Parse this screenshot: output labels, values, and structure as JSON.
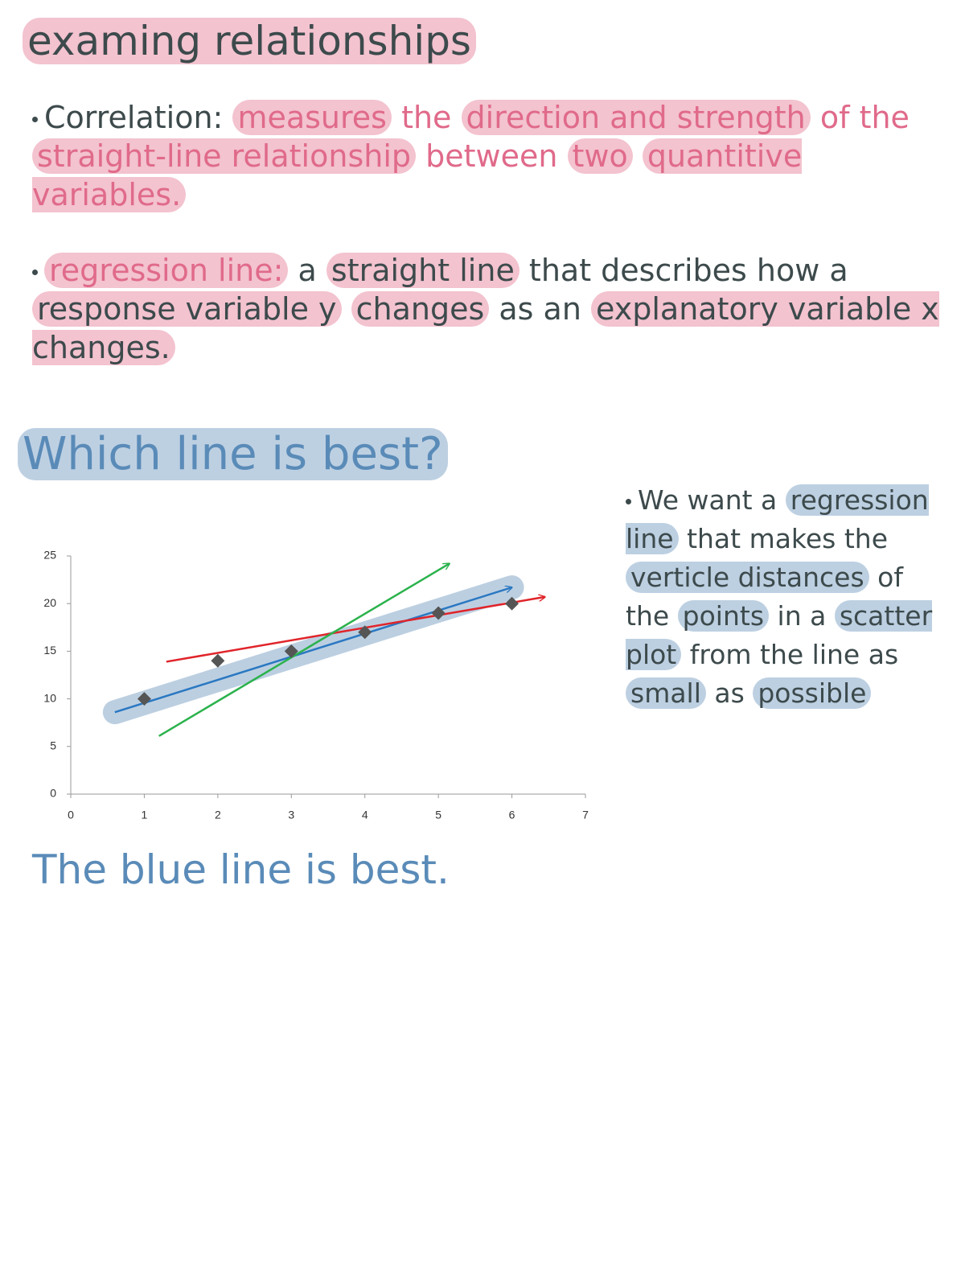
{
  "title": "examing relationships",
  "correlation": {
    "term": "Correlation:",
    "definition": [
      "measures",
      "the",
      "direction and strength",
      "of the",
      "straight-line relationship",
      "between",
      "two",
      "quantitive variables."
    ]
  },
  "regression": {
    "term": "regression line:",
    "definition": [
      "a",
      "straight line",
      "that describes how a",
      "response variable y",
      "changes",
      "as an",
      "explanatory variable x changes."
    ]
  },
  "heading": "Which line is best?",
  "note": [
    "We want a",
    "regression line",
    "that makes the",
    "verticle distances",
    "of the",
    "points",
    "in a",
    "scatter plot",
    "from the line as",
    "small",
    "as",
    "possible"
  ],
  "conclusion": "The blue line is best.",
  "chart_data": {
    "type": "scatter",
    "xlim": [
      0,
      7
    ],
    "ylim": [
      0,
      25
    ],
    "xticks": [
      0,
      1,
      2,
      3,
      4,
      5,
      6,
      7
    ],
    "yticks": [
      0,
      5,
      10,
      15,
      20,
      25
    ],
    "series": [
      {
        "type": "scatter",
        "color": "#555555",
        "x": [
          1,
          2,
          3,
          4,
          5,
          6
        ],
        "values": [
          10,
          14,
          15,
          17,
          19,
          20
        ]
      },
      {
        "type": "line",
        "color": "#2a78c2",
        "highlight": "#bccfe1",
        "x": [
          0.6,
          6
        ],
        "values": [
          8.6,
          21.7
        ]
      },
      {
        "type": "line",
        "color": "#e0242a",
        "x": [
          1.3,
          6.45
        ],
        "values": [
          13.9,
          20.7
        ]
      },
      {
        "type": "line",
        "color": "#2bb24c",
        "x": [
          1.2,
          5.15
        ],
        "values": [
          6.1,
          24.2
        ]
      }
    ]
  }
}
